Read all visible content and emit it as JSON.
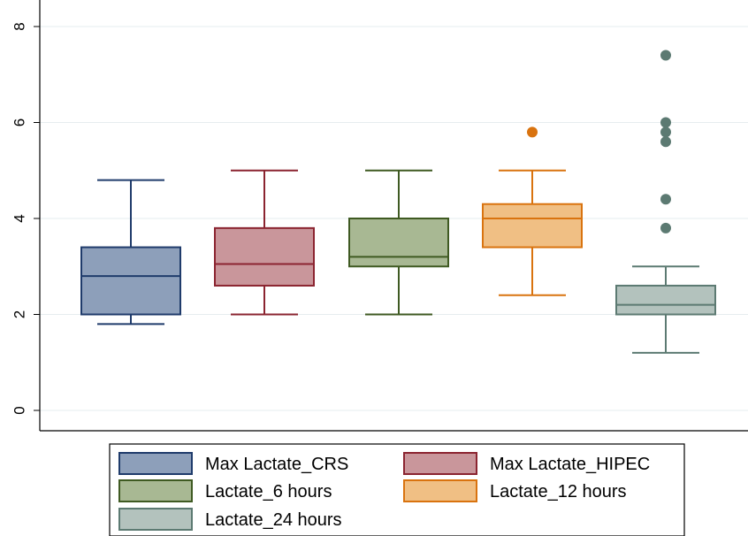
{
  "chart_data": {
    "type": "box",
    "title": "",
    "xlabel": "",
    "ylabel": "",
    "ylim": [
      0,
      8.5
    ],
    "y_ticks": [
      0,
      2,
      4,
      6,
      8
    ],
    "grid": true,
    "legend_position": "bottom",
    "series": [
      {
        "name": "Max Lactate_CRS",
        "fill": "#8d9fba",
        "stroke": "#1f3b6b",
        "min": 1.8,
        "q1": 2.0,
        "median": 2.8,
        "q3": 3.4,
        "max": 4.8,
        "outliers": []
      },
      {
        "name": "Max Lactate_HIPEC",
        "fill": "#c9969b",
        "stroke": "#8b2430",
        "min": 2.0,
        "q1": 2.6,
        "median": 3.05,
        "q3": 3.8,
        "max": 5.0,
        "outliers": []
      },
      {
        "name": "Lactate_6 hours",
        "fill": "#a8b893",
        "stroke": "#3f5a22",
        "min": 2.0,
        "q1": 3.0,
        "median": 3.2,
        "q3": 4.0,
        "max": 5.0,
        "outliers": []
      },
      {
        "name": "Lactate_12 hours",
        "fill": "#f0bf84",
        "stroke": "#d9730f",
        "min": 2.4,
        "q1": 3.4,
        "median": 4.0,
        "q3": 4.3,
        "max": 5.0,
        "outliers": [
          5.8
        ]
      },
      {
        "name": "Lactate_24 hours",
        "fill": "#b3c2bd",
        "stroke": "#5c7a72",
        "min": 1.2,
        "q1": 2.0,
        "median": 2.2,
        "q3": 2.6,
        "max": 3.0,
        "outliers": [
          3.8,
          4.4,
          5.6,
          5.8,
          6.0,
          7.4
        ]
      }
    ]
  }
}
